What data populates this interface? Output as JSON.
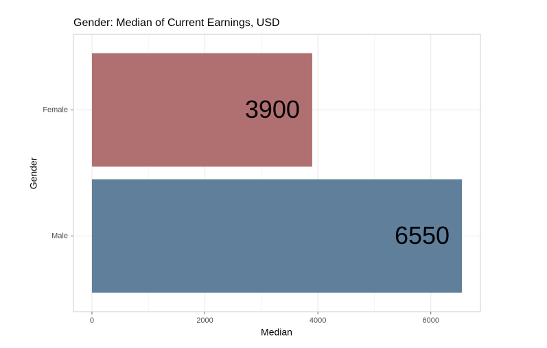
{
  "chart_data": {
    "type": "bar",
    "orientation": "horizontal",
    "title": "Gender: Median of Current Earnings, USD",
    "x_label": "Median",
    "y_label": "Gender",
    "categories": [
      "Female",
      "Male"
    ],
    "values": [
      3900,
      6550
    ],
    "colors": [
      "#b07072",
      "#5f7f9b"
    ],
    "xlim": [
      -327.5,
      6877.5
    ],
    "xticks": [
      0,
      2000,
      4000,
      6000
    ],
    "grid": true
  }
}
